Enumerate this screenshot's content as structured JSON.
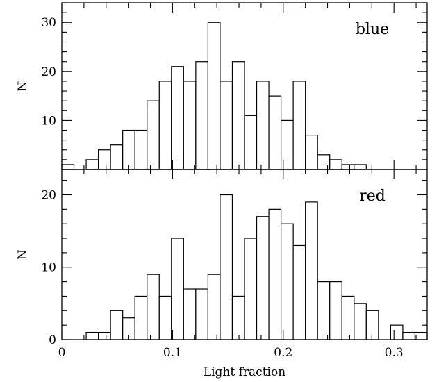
{
  "chart_data": [
    {
      "type": "bar",
      "panel": "top",
      "label": "blue",
      "xlabel": "",
      "ylabel": "N",
      "xlim": [
        0,
        0.33
      ],
      "ylim": [
        0,
        34
      ],
      "bin_width": 0.011,
      "bin_starts": [
        0,
        0.011,
        0.022,
        0.033,
        0.044,
        0.055,
        0.066,
        0.077,
        0.088,
        0.099,
        0.11,
        0.121,
        0.132,
        0.143,
        0.154,
        0.165,
        0.176,
        0.187,
        0.198,
        0.209,
        0.22,
        0.231,
        0.242,
        0.253,
        0.264,
        0.275,
        0.286,
        0.297,
        0.308,
        0.319
      ],
      "values": [
        1,
        0,
        2,
        4,
        5,
        8,
        8,
        14,
        18,
        21,
        18,
        22,
        30,
        18,
        22,
        11,
        18,
        15,
        10,
        18,
        7,
        3,
        2,
        1,
        1,
        0,
        0,
        0,
        0,
        0
      ],
      "yticks": [
        10,
        20,
        30
      ],
      "xticks": [
        0,
        0.1,
        0.2,
        0.3
      ],
      "tick_labels_x": []
    },
    {
      "type": "bar",
      "panel": "bottom",
      "label": "red",
      "xlabel": "Light fraction",
      "ylabel": "N",
      "xlim": [
        0,
        0.33
      ],
      "ylim": [
        0,
        23.5
      ],
      "bin_width": 0.011,
      "bin_starts": [
        0,
        0.011,
        0.022,
        0.033,
        0.044,
        0.055,
        0.066,
        0.077,
        0.088,
        0.099,
        0.11,
        0.121,
        0.132,
        0.143,
        0.154,
        0.165,
        0.176,
        0.187,
        0.198,
        0.209,
        0.22,
        0.231,
        0.242,
        0.253,
        0.264,
        0.275,
        0.286,
        0.297,
        0.308,
        0.319
      ],
      "values": [
        0,
        0,
        1,
        1,
        4,
        3,
        6,
        9,
        6,
        14,
        7,
        7,
        9,
        20,
        6,
        14,
        17,
        18,
        16,
        13,
        19,
        8,
        8,
        6,
        5,
        4,
        0,
        2,
        1,
        1
      ],
      "yticks": [
        0,
        10,
        20
      ],
      "xticks": [
        0,
        0.1,
        0.2,
        0.3
      ],
      "tick_labels_x": [
        "0",
        "0.1",
        "0.2",
        "0.3"
      ]
    }
  ]
}
